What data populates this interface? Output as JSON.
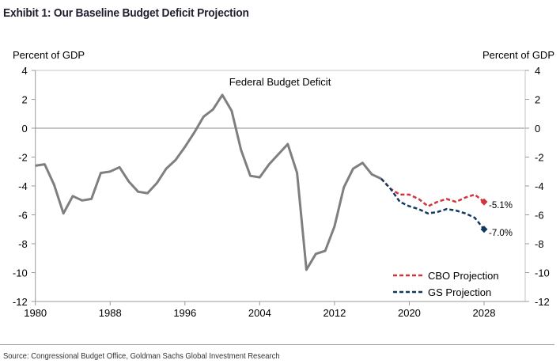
{
  "title": "Exhibit 1: Our Baseline Budget Deficit Projection",
  "source": "Source: Congressional Budget Office, Goldman Sachs Global Investment Research",
  "colors": {
    "history": "#7f7f7f",
    "cbo": "#d0343c",
    "gs": "#12395f",
    "axis": "#9a9a9a",
    "frame": "#d9d9d9",
    "zero_line": "#8c8c8c"
  },
  "chart_data": {
    "type": "line",
    "title": "Federal Budget Deficit",
    "ylabel_left": "Percent of GDP",
    "ylabel_right": "Percent of GDP",
    "xlabel": "",
    "xlim": [
      1980,
      2032.4
    ],
    "ylim": [
      -12,
      4
    ],
    "x_ticks": [
      1980,
      1988,
      1996,
      2004,
      2012,
      2020,
      2028
    ],
    "x_tick_labels": [
      "1980",
      "1988",
      "1996",
      "2004",
      "2012",
      "2020",
      "2028"
    ],
    "y_ticks": [
      4,
      2,
      0,
      -2,
      -4,
      -6,
      -8,
      -10,
      -12
    ],
    "y_tick_labels": [
      "4",
      "2",
      "0",
      "-2",
      "-4",
      "-6",
      "-8",
      "-10",
      "-12"
    ],
    "grid": false,
    "zero_line": true,
    "legend": {
      "position": "bottom-right",
      "entries": [
        {
          "label": "CBO Projection",
          "series": "cbo"
        },
        {
          "label": "GS Projection",
          "series": "gs"
        }
      ]
    },
    "series": [
      {
        "name": "Federal Budget Deficit",
        "key": "history",
        "style": "solid",
        "x": [
          1980,
          1981,
          1982,
          1983,
          1984,
          1985,
          1986,
          1987,
          1988,
          1989,
          1990,
          1991,
          1992,
          1993,
          1994,
          1995,
          1996,
          1997,
          1998,
          1999,
          2000,
          2001,
          2002,
          2003,
          2004,
          2005,
          2006,
          2007,
          2008,
          2009,
          2010,
          2011,
          2012,
          2013,
          2014,
          2015,
          2016,
          2017
        ],
        "values": [
          -2.6,
          -2.5,
          -3.9,
          -5.9,
          -4.7,
          -5.0,
          -4.9,
          -3.1,
          -3.0,
          -2.7,
          -3.7,
          -4.4,
          -4.5,
          -3.8,
          -2.8,
          -2.2,
          -1.3,
          -0.3,
          0.8,
          1.3,
          2.3,
          1.2,
          -1.5,
          -3.3,
          -3.4,
          -2.5,
          -1.8,
          -1.1,
          -3.1,
          -9.8,
          -8.7,
          -8.5,
          -6.8,
          -4.1,
          -2.8,
          -2.4,
          -3.2,
          -3.5
        ]
      },
      {
        "name": "CBO Projection",
        "key": "cbo",
        "style": "dashed",
        "x": [
          2017,
          2018,
          2019,
          2020,
          2021,
          2022,
          2023,
          2024,
          2025,
          2026,
          2027,
          2028
        ],
        "values": [
          -3.5,
          -4.2,
          -4.6,
          -4.6,
          -4.9,
          -5.4,
          -5.1,
          -4.9,
          -5.1,
          -4.8,
          -4.6,
          -5.1
        ],
        "end_label": "-5.1%"
      },
      {
        "name": "GS Projection",
        "key": "gs",
        "style": "dashed",
        "x": [
          2017,
          2018,
          2019,
          2020,
          2021,
          2022,
          2023,
          2024,
          2025,
          2026,
          2027,
          2028
        ],
        "values": [
          -3.5,
          -4.2,
          -5.1,
          -5.4,
          -5.6,
          -5.9,
          -5.8,
          -5.6,
          -5.7,
          -5.9,
          -6.2,
          -7.0
        ],
        "end_label": "-7.0%"
      }
    ]
  }
}
